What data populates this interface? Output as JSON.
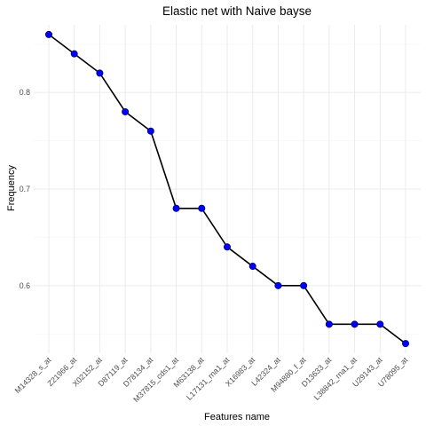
{
  "chart_data": {
    "type": "line",
    "title": "Elastic net  with Naive bayse",
    "xlabel": "Features name",
    "ylabel": "Frequency",
    "categories": [
      "M14328_s_at",
      "Z21966_at",
      "X02152_at",
      "D87119_at",
      "D78134_at",
      "M37815_cds1_at",
      "M63138_at",
      "L17131_rna1_at",
      "X16983_at",
      "L42324_at",
      "M94880_f_at",
      "D13633_at",
      "L38842_rna1_at",
      "U29143_at",
      "U78095_at"
    ],
    "values": [
      0.86,
      0.84,
      0.82,
      0.78,
      0.76,
      0.68,
      0.68,
      0.64,
      0.62,
      0.6,
      0.6,
      0.56,
      0.56,
      0.56,
      0.54
    ],
    "ylim": [
      0.53,
      0.87
    ],
    "yticks": [
      "0.6",
      "0.7",
      "0.8"
    ],
    "grid": true,
    "line_color": "#000000",
    "point_color": "#0000ff"
  }
}
